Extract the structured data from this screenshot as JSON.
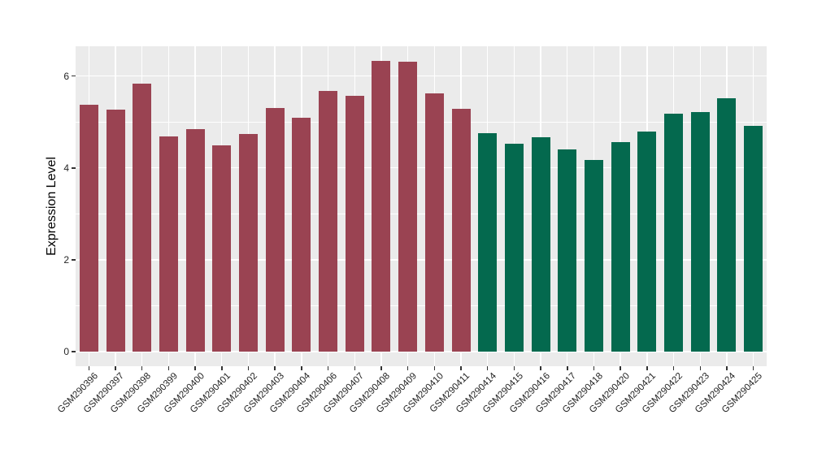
{
  "chart_data": {
    "type": "bar",
    "title": "",
    "xlabel": "",
    "ylabel": "Expression Level",
    "categories": [
      "GSM290396",
      "GSM290397",
      "GSM290398",
      "GSM290399",
      "GSM290400",
      "GSM290401",
      "GSM290402",
      "GSM290403",
      "GSM290404",
      "GSM290406",
      "GSM290407",
      "GSM290408",
      "GSM290409",
      "GSM290410",
      "GSM290411",
      "GSM290414",
      "GSM290415",
      "GSM290416",
      "GSM290417",
      "GSM290418",
      "GSM290420",
      "GSM290421",
      "GSM290422",
      "GSM290423",
      "GSM290424",
      "GSM290425"
    ],
    "values": [
      5.37,
      5.27,
      5.84,
      4.68,
      4.84,
      4.5,
      4.74,
      5.31,
      5.09,
      5.68,
      5.57,
      6.33,
      6.32,
      5.63,
      5.28,
      4.76,
      4.52,
      4.66,
      4.4,
      4.17,
      4.56,
      4.8,
      5.19,
      5.21,
      5.51,
      4.91
    ],
    "groups": [
      "A",
      "A",
      "A",
      "A",
      "A",
      "A",
      "A",
      "A",
      "A",
      "A",
      "A",
      "A",
      "A",
      "A",
      "A",
      "B",
      "B",
      "B",
      "B",
      "B",
      "B",
      "B",
      "B",
      "B",
      "B",
      "B"
    ],
    "colors": {
      "A": "#9A4352",
      "B": "#04694E"
    },
    "y_ticks": [
      0,
      2,
      4,
      6
    ],
    "y_minor_ticks": [
      1,
      3,
      5
    ],
    "ylim": [
      -0.32,
      6.65
    ],
    "panel_bg": "#EBEBEB",
    "grid_color": "#FFFFFF",
    "grid": "on",
    "legend_position": "none"
  }
}
